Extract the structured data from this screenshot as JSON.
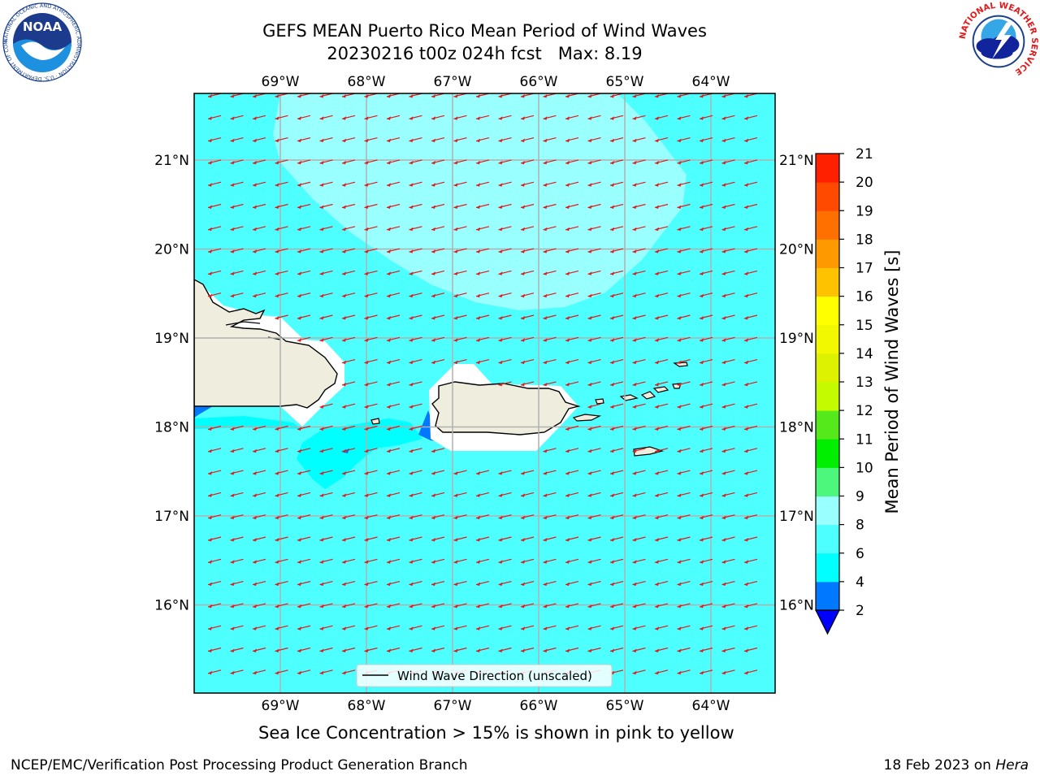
{
  "header": {
    "title_line1": "GEFS MEAN Puerto Rico Mean Period of Wind Waves",
    "title_line2": "20230216 t00z 024h fcst   Max: 8.19"
  },
  "map": {
    "lon_ticks": [
      "69°W",
      "68°W",
      "67°W",
      "66°W",
      "65°W",
      "64°W"
    ],
    "lat_ticks": [
      "21°N",
      "20°N",
      "19°N",
      "18°N",
      "17°N",
      "16°N"
    ],
    "legend_label": "Wind Wave Direction (unscaled)",
    "ocean_color": "#4dffff",
    "high_period_color": "#99ffff",
    "land_color": "#efedde",
    "arrow_color": "#e31a1c",
    "wind_wave_direction": "toward west-southwest"
  },
  "colorbar": {
    "label": "Mean Period of Wind Waves [s]",
    "ticks": [
      "2",
      "4",
      "6",
      "8",
      "9",
      "10",
      "11",
      "12",
      "13",
      "14",
      "15",
      "16",
      "17",
      "18",
      "19",
      "20",
      "21"
    ],
    "bands": [
      {
        "from": 2,
        "to": 4,
        "color": "#0078ff"
      },
      {
        "from": 4,
        "to": 6,
        "color": "#00ffff"
      },
      {
        "from": 6,
        "to": 8,
        "color": "#4dffff"
      },
      {
        "from": 8,
        "to": 9,
        "color": "#99ffff"
      },
      {
        "from": 9,
        "to": 10,
        "color": "#4cf77b"
      },
      {
        "from": 10,
        "to": 11,
        "color": "#00ee00"
      },
      {
        "from": 11,
        "to": 12,
        "color": "#55e81b"
      },
      {
        "from": 12,
        "to": 13,
        "color": "#c4fb00"
      },
      {
        "from": 13,
        "to": 14,
        "color": "#ddf200"
      },
      {
        "from": 14,
        "to": 15,
        "color": "#f2f800"
      },
      {
        "from": 15,
        "to": 16,
        "color": "#ffff00"
      },
      {
        "from": 16,
        "to": 17,
        "color": "#ffc200"
      },
      {
        "from": 17,
        "to": 18,
        "color": "#ff9900"
      },
      {
        "from": 18,
        "to": 19,
        "color": "#ff7000"
      },
      {
        "from": 19,
        "to": 20,
        "color": "#ff4a00"
      },
      {
        "from": 20,
        "to": 21,
        "color": "#ff2000"
      }
    ],
    "under_color": "#0000ff"
  },
  "notes": {
    "sea_ice": "Sea Ice Concentration > 15% is shown in pink to yellow",
    "footer_left": "NCEP/EMC/Verification Post Processing Product Generation Branch",
    "footer_date": "18 Feb 2023 on ",
    "footer_machine": "Hera"
  },
  "logos": {
    "noaa_text": "NOAA",
    "noaa_ring": "NATIONAL OCEANIC AND ATMOSPHERIC ADMINISTRATION · U.S. DEPARTMENT OF COMMERCE",
    "nws_ring": "NATIONAL WEATHER SERVICE"
  }
}
